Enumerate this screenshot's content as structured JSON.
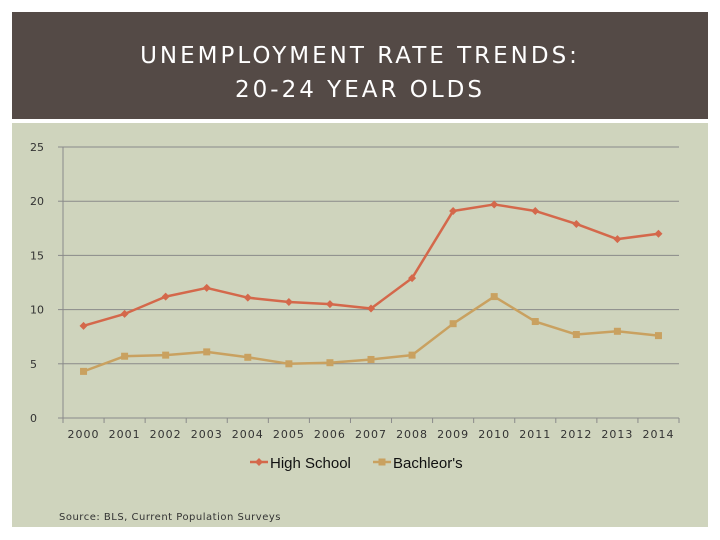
{
  "header": {
    "title_line1": "UNEMPLOYMENT RATE TRENDS:",
    "title_line2": "20-24 YEAR OLDS"
  },
  "source": "Source: BLS, Current Population Surveys",
  "chart_data": {
    "type": "line",
    "title": "UNEMPLOYMENT RATE TRENDS: 20-24 YEAR OLDS",
    "xlabel": "",
    "ylabel": "",
    "x": [
      "2000",
      "2001",
      "2002",
      "2003",
      "2004",
      "2005",
      "2006",
      "2007",
      "2008",
      "2009",
      "2010",
      "2011",
      "2012",
      "2013",
      "2014"
    ],
    "ylim": [
      0,
      25
    ],
    "yticks": [
      0,
      5,
      10,
      15,
      20,
      25
    ],
    "grid": true,
    "legend_position": "bottom",
    "series": [
      {
        "name": "High School",
        "color": "#d4684b",
        "marker": "diamond",
        "values": [
          8.5,
          9.6,
          11.2,
          12.0,
          11.1,
          10.7,
          10.5,
          10.1,
          12.9,
          19.1,
          19.7,
          19.1,
          17.9,
          16.5,
          17.0
        ]
      },
      {
        "name": "Bachleor's",
        "color": "#c9a160",
        "marker": "square",
        "values": [
          4.3,
          5.7,
          5.8,
          6.1,
          5.6,
          5.0,
          5.1,
          5.4,
          5.8,
          8.7,
          11.2,
          8.9,
          7.7,
          8.0,
          7.6
        ]
      }
    ]
  }
}
